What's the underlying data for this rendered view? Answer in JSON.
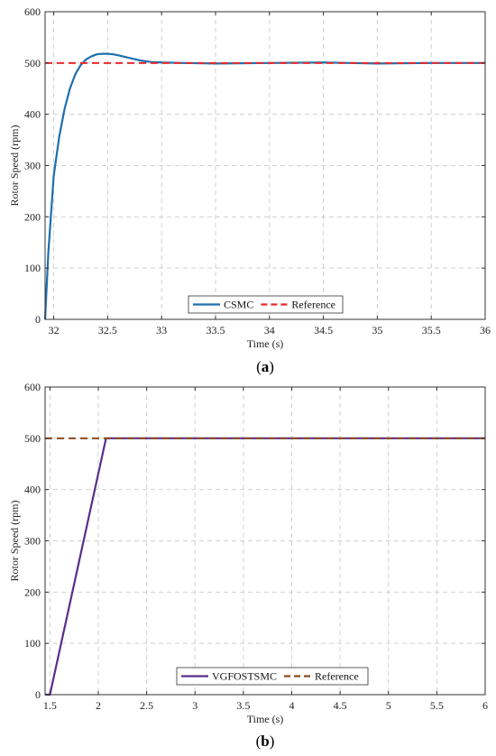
{
  "chart_data": [
    {
      "type": "line",
      "caption_open": "(",
      "caption_letter": "a",
      "caption_close": ")",
      "xlabel": "Time (s)",
      "ylabel": "Rotor Speed (rpm)",
      "xlim": [
        31.92,
        36
      ],
      "ylim": [
        0,
        600
      ],
      "xticks": [
        32,
        32.5,
        33,
        33.5,
        34,
        34.5,
        35,
        35.5,
        36
      ],
      "yticks": [
        0,
        100,
        200,
        300,
        400,
        500,
        600
      ],
      "grid": true,
      "legend_position": "bottom-center",
      "series": [
        {
          "name": "CSMC",
          "color": "#1f6fad",
          "style": "solid",
          "x": [
            31.92,
            31.95,
            32.0,
            32.05,
            32.1,
            32.15,
            32.2,
            32.25,
            32.3,
            32.35,
            32.4,
            32.45,
            32.5,
            32.55,
            32.6,
            32.7,
            32.8,
            32.9,
            33.0,
            33.2,
            33.5,
            34.0,
            34.5,
            35.0,
            35.5,
            36.0
          ],
          "y": [
            0,
            130,
            280,
            355,
            410,
            450,
            478,
            496,
            507,
            513,
            517,
            518,
            518,
            517,
            515,
            510,
            505,
            502,
            501,
            500,
            499,
            500,
            501,
            499,
            500,
            500
          ]
        },
        {
          "name": "Reference",
          "color": "#e8292b",
          "style": "dashed",
          "x": [
            31.92,
            36
          ],
          "y": [
            500,
            500
          ]
        }
      ]
    },
    {
      "type": "line",
      "caption_open": "(",
      "caption_letter": "b",
      "caption_close": ")",
      "xlabel": "Time (s)",
      "ylabel": "Rotor Speed (rpm)",
      "xlim": [
        1.45,
        6
      ],
      "ylim": [
        0,
        600
      ],
      "xticks": [
        1.5,
        2,
        2.5,
        3,
        3.5,
        4,
        4.5,
        5,
        5.5,
        6
      ],
      "yticks": [
        0,
        100,
        200,
        300,
        400,
        500,
        600
      ],
      "grid": true,
      "legend_position": "bottom-center",
      "series": [
        {
          "name": "VGFOSTSMC",
          "color": "#5b2d8c",
          "style": "solid",
          "x": [
            1.45,
            1.5,
            2.08,
            2.2,
            3.0,
            4.0,
            5.0,
            6.0
          ],
          "y": [
            0,
            0,
            500,
            500,
            500,
            500,
            500,
            500
          ]
        },
        {
          "name": "Reference",
          "color": "#8b4a1c",
          "style": "dashed",
          "x": [
            1.45,
            6
          ],
          "y": [
            500,
            500
          ]
        }
      ]
    }
  ]
}
